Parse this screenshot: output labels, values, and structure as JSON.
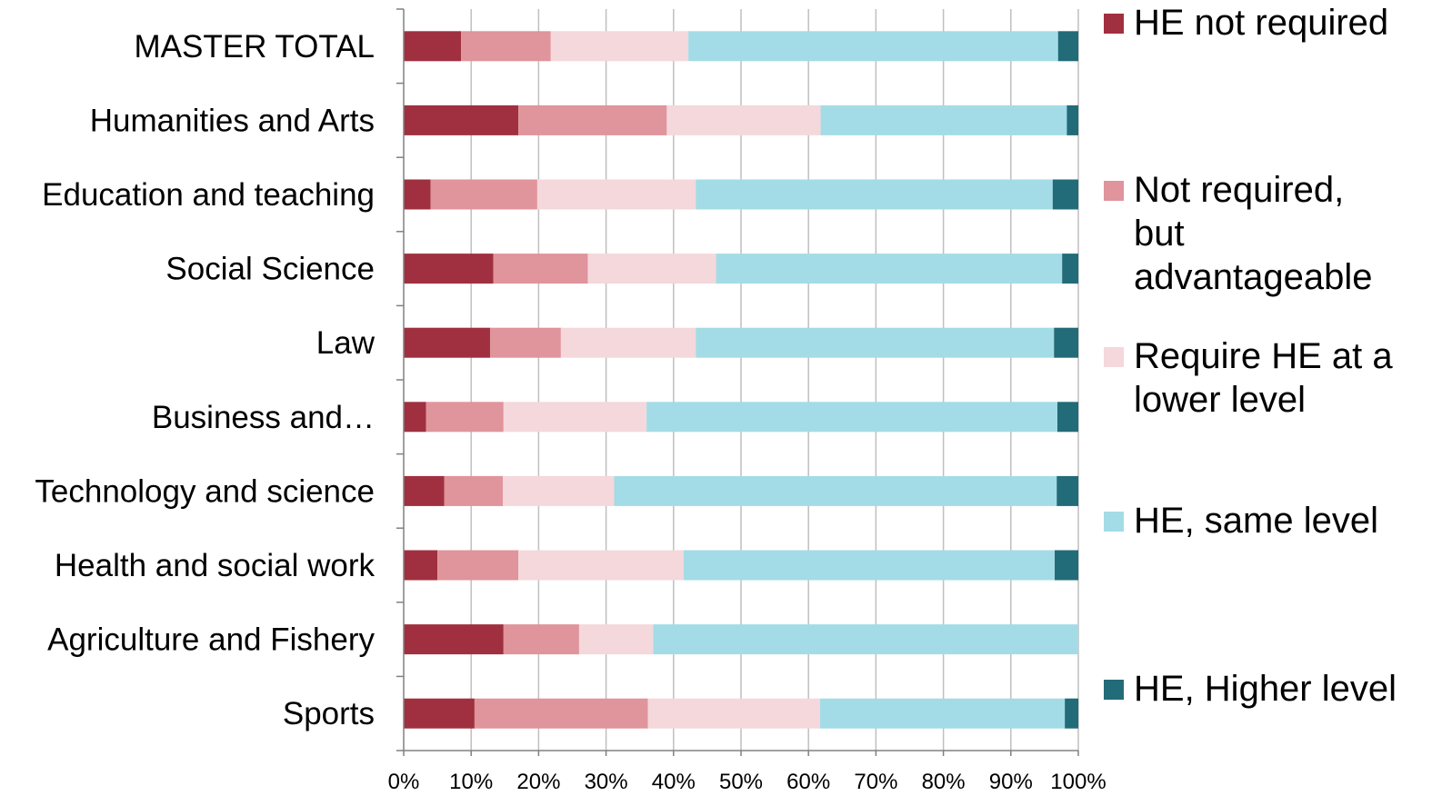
{
  "chart_data": {
    "type": "bar",
    "orientation": "horizontal",
    "stacked": "percent",
    "categories": [
      "MASTER TOTAL",
      "Humanities and Arts",
      "Education and teaching",
      "Social Science",
      "Law",
      "Business and…",
      "Technology and science",
      "Health and social work",
      "Agriculture and Fishery",
      "Sports"
    ],
    "series": [
      {
        "name": "HE not required",
        "color": "#A0303F",
        "values": [
          8.5,
          17,
          4,
          13.3,
          12.8,
          3.3,
          6,
          5,
          14.8,
          10.5
        ]
      },
      {
        "name": "Not required, but advantageable",
        "color": "#E0949B",
        "values": [
          13.3,
          22,
          15.8,
          14,
          10.5,
          11.5,
          8.7,
          12,
          11.2,
          25.7
        ]
      },
      {
        "name": "Require HE at a lower level",
        "color": "#F4D8DB",
        "values": [
          20.4,
          22.8,
          23.5,
          19,
          20,
          21.2,
          16.5,
          24.5,
          11,
          25.5
        ]
      },
      {
        "name": "HE, same level",
        "color": "#A3DCE6",
        "values": [
          54.8,
          36.5,
          52.9,
          51.3,
          53.1,
          60.9,
          65.6,
          55,
          63,
          36.3
        ]
      },
      {
        "name": "HE, Higher level",
        "color": "#226B79",
        "values": [
          3,
          1.7,
          3.8,
          2.4,
          3.6,
          3.1,
          3.2,
          3.5,
          0,
          2
        ]
      }
    ],
    "xlim": [
      0,
      100
    ],
    "x_ticks": [
      "0%",
      "10%",
      "20%",
      "30%",
      "40%",
      "50%",
      "60%",
      "70%",
      "80%",
      "90%",
      "100%"
    ],
    "grid": "vertical",
    "legend": {
      "position": "right",
      "lines": [
        [
          "HE not required"
        ],
        [
          "Not required,",
          "but",
          "advantageable"
        ],
        [
          "Require HE at a",
          "lower level"
        ],
        [
          "HE, same level"
        ],
        [
          "HE, Higher level"
        ]
      ]
    }
  }
}
